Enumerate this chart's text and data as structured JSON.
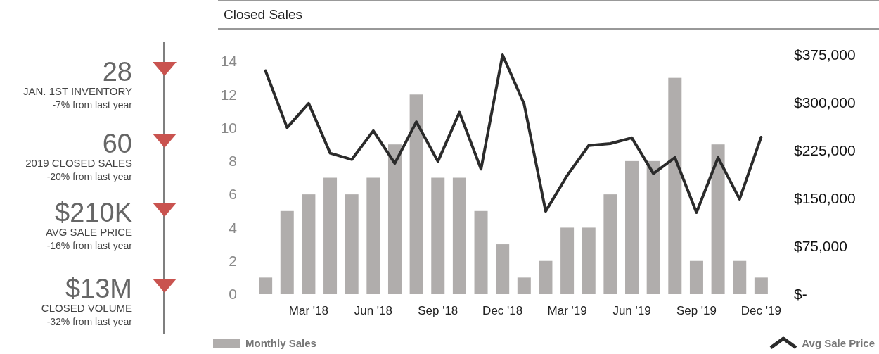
{
  "chart_data": [
    {
      "type": "other",
      "annotations": [
        "28",
        "JAN. 1ST INVENTORY",
        "-7% from last year",
        "60",
        "2019 CLOSED SALES",
        "-20% from last year",
        "$210K",
        "AVG SALE PRICE",
        "-16% from last year",
        "$13M",
        "CLOSED VOLUME",
        "-32% from last year"
      ]
    },
    {
      "type": "bar",
      "title": "Closed Sales",
      "categories": [
        null,
        null,
        "Mar '18",
        null,
        null,
        "Jun '18",
        null,
        null,
        "Sep '18",
        null,
        null,
        "Dec '18",
        null,
        null,
        "Mar '19",
        null,
        null,
        "Jun '19",
        null,
        null,
        "Sep '19",
        null,
        null,
        "Dec '19"
      ],
      "series": [
        {
          "name": "Monthly Sales",
          "type": "bar",
          "color": "#b0adac",
          "values": [
            1,
            5,
            6,
            7,
            6,
            7,
            9,
            12,
            7,
            7,
            5,
            3,
            1,
            2,
            4,
            4,
            6,
            8,
            8,
            13,
            2,
            9,
            2,
            1
          ]
        },
        {
          "name": "Avg Sale Price",
          "type": "line",
          "axis": "y2",
          "color": "#2b2b2b",
          "values": [
            350000,
            261000,
            299000,
            221000,
            211000,
            256000,
            205000,
            270000,
            208000,
            285000,
            196000,
            375000,
            298000,
            130000,
            186000,
            233000,
            236000,
            245000,
            189000,
            214000,
            128000,
            214000,
            149000,
            246000
          ]
        }
      ],
      "ylim": [
        0,
        14
      ],
      "yticks": [
        0,
        2,
        4,
        6,
        8,
        10,
        12,
        14
      ],
      "y2lim": [
        0,
        375000
      ],
      "y2ticks": [
        {
          "value": 0,
          "label": "$-"
        },
        {
          "value": 75000,
          "label": "$75,000"
        },
        {
          "value": 150000,
          "label": "$150,000"
        },
        {
          "value": 225000,
          "label": "$225,000"
        },
        {
          "value": 300000,
          "label": "$300,000"
        },
        {
          "value": 375000,
          "label": "$375,000"
        }
      ],
      "legend": "bottom",
      "grid": false
    }
  ]
}
